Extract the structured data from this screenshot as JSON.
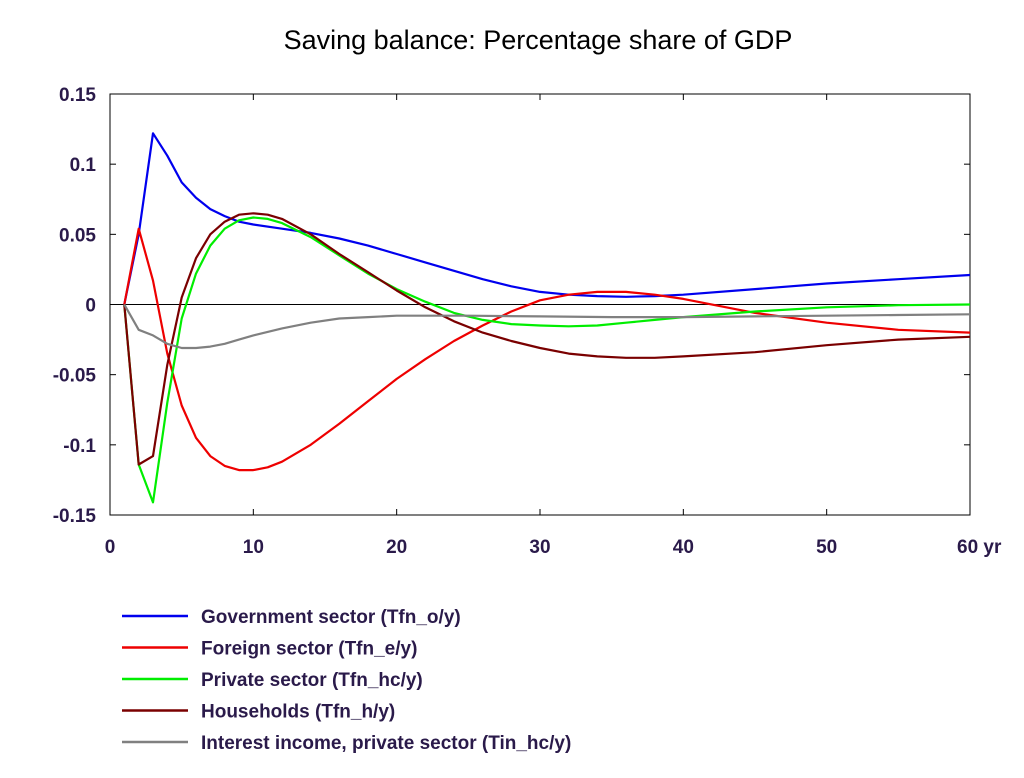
{
  "chart_data": {
    "type": "line",
    "title": "Saving balance: Percentage share of GDP",
    "xlabel": "",
    "ylabel": "",
    "xlim": [
      0,
      60
    ],
    "ylim": [
      -0.15,
      0.15
    ],
    "x_ticks": [
      0,
      10,
      20,
      30,
      40,
      50,
      60
    ],
    "x_tick_labels": [
      "0",
      "10",
      "20",
      "30",
      "40",
      "50",
      "60 yr"
    ],
    "y_ticks": [
      0.15,
      0.1,
      0.05,
      0,
      -0.05,
      -0.1,
      -0.15
    ],
    "y_tick_labels": [
      "0.15",
      "0.1",
      "0.05",
      "0",
      "-0.05",
      "-0.1",
      "-0.15"
    ],
    "zero_line": true,
    "grid": false,
    "legend_position": "bottom-left",
    "series": [
      {
        "name": "Government sector (Tfn_o/y)",
        "color": "#0000ee",
        "points": [
          [
            1,
            0
          ],
          [
            2,
            0.05
          ],
          [
            3,
            0.122
          ],
          [
            4,
            0.106
          ],
          [
            5,
            0.087
          ],
          [
            6,
            0.076
          ],
          [
            7,
            0.068
          ],
          [
            8,
            0.063
          ],
          [
            9,
            0.059
          ],
          [
            10,
            0.057
          ],
          [
            12,
            0.054
          ],
          [
            14,
            0.051
          ],
          [
            16,
            0.047
          ],
          [
            18,
            0.042
          ],
          [
            20,
            0.036
          ],
          [
            22,
            0.03
          ],
          [
            24,
            0.024
          ],
          [
            26,
            0.018
          ],
          [
            28,
            0.013
          ],
          [
            30,
            0.009
          ],
          [
            32,
            0.007
          ],
          [
            34,
            0.006
          ],
          [
            36,
            0.0055
          ],
          [
            38,
            0.006
          ],
          [
            40,
            0.007
          ],
          [
            45,
            0.011
          ],
          [
            50,
            0.015
          ],
          [
            55,
            0.018
          ],
          [
            60,
            0.021
          ]
        ]
      },
      {
        "name": "Foreign sector (Tfn_e/y)",
        "color": "#ee0000",
        "points": [
          [
            1,
            0
          ],
          [
            2,
            0.054
          ],
          [
            3,
            0.017
          ],
          [
            4,
            -0.035
          ],
          [
            5,
            -0.072
          ],
          [
            6,
            -0.095
          ],
          [
            7,
            -0.108
          ],
          [
            8,
            -0.115
          ],
          [
            9,
            -0.118
          ],
          [
            10,
            -0.118
          ],
          [
            11,
            -0.116
          ],
          [
            12,
            -0.112
          ],
          [
            14,
            -0.1
          ],
          [
            16,
            -0.085
          ],
          [
            18,
            -0.069
          ],
          [
            20,
            -0.053
          ],
          [
            22,
            -0.039
          ],
          [
            24,
            -0.026
          ],
          [
            26,
            -0.015
          ],
          [
            28,
            -0.005
          ],
          [
            30,
            0.003
          ],
          [
            32,
            0.007
          ],
          [
            34,
            0.009
          ],
          [
            36,
            0.009
          ],
          [
            38,
            0.007
          ],
          [
            40,
            0.004
          ],
          [
            45,
            -0.006
          ],
          [
            50,
            -0.013
          ],
          [
            55,
            -0.018
          ],
          [
            60,
            -0.02
          ]
        ]
      },
      {
        "name": "Private sector (Tfn_hc/y)",
        "color": "#00ee00",
        "points": [
          [
            1,
            0
          ],
          [
            2,
            -0.114
          ],
          [
            3,
            -0.141
          ],
          [
            4,
            -0.07
          ],
          [
            5,
            -0.01
          ],
          [
            6,
            0.022
          ],
          [
            7,
            0.042
          ],
          [
            8,
            0.054
          ],
          [
            9,
            0.06
          ],
          [
            10,
            0.062
          ],
          [
            11,
            0.061
          ],
          [
            12,
            0.058
          ],
          [
            14,
            0.048
          ],
          [
            16,
            0.035
          ],
          [
            18,
            0.022
          ],
          [
            20,
            0.011
          ],
          [
            22,
            0.002
          ],
          [
            24,
            -0.006
          ],
          [
            26,
            -0.011
          ],
          [
            28,
            -0.014
          ],
          [
            30,
            -0.015
          ],
          [
            32,
            -0.0155
          ],
          [
            34,
            -0.015
          ],
          [
            36,
            -0.013
          ],
          [
            38,
            -0.011
          ],
          [
            40,
            -0.009
          ],
          [
            45,
            -0.005
          ],
          [
            50,
            -0.002
          ],
          [
            55,
            -0.0005
          ],
          [
            60,
            0
          ]
        ]
      },
      {
        "name": "Households (Tfn_h/y)",
        "color": "#7a0000",
        "points": [
          [
            1,
            0
          ],
          [
            2,
            -0.114
          ],
          [
            3,
            -0.108
          ],
          [
            4,
            -0.043
          ],
          [
            5,
            0.005
          ],
          [
            6,
            0.033
          ],
          [
            7,
            0.05
          ],
          [
            8,
            0.059
          ],
          [
            9,
            0.064
          ],
          [
            10,
            0.065
          ],
          [
            11,
            0.064
          ],
          [
            12,
            0.061
          ],
          [
            14,
            0.05
          ],
          [
            16,
            0.036
          ],
          [
            18,
            0.023
          ],
          [
            20,
            0.01
          ],
          [
            22,
            -0.002
          ],
          [
            24,
            -0.012
          ],
          [
            26,
            -0.02
          ],
          [
            28,
            -0.026
          ],
          [
            30,
            -0.031
          ],
          [
            32,
            -0.035
          ],
          [
            34,
            -0.037
          ],
          [
            36,
            -0.038
          ],
          [
            38,
            -0.038
          ],
          [
            40,
            -0.037
          ],
          [
            45,
            -0.034
          ],
          [
            50,
            -0.029
          ],
          [
            55,
            -0.025
          ],
          [
            60,
            -0.023
          ]
        ]
      },
      {
        "name": "Interest income, private sector (Tin_hc/y)",
        "color": "#808080",
        "points": [
          [
            1,
            0
          ],
          [
            2,
            -0.018
          ],
          [
            3,
            -0.022
          ],
          [
            4,
            -0.028
          ],
          [
            5,
            -0.031
          ],
          [
            6,
            -0.031
          ],
          [
            7,
            -0.03
          ],
          [
            8,
            -0.028
          ],
          [
            9,
            -0.025
          ],
          [
            10,
            -0.022
          ],
          [
            12,
            -0.017
          ],
          [
            14,
            -0.013
          ],
          [
            16,
            -0.01
          ],
          [
            18,
            -0.009
          ],
          [
            20,
            -0.008
          ],
          [
            25,
            -0.008
          ],
          [
            30,
            -0.0085
          ],
          [
            35,
            -0.009
          ],
          [
            40,
            -0.009
          ],
          [
            45,
            -0.0085
          ],
          [
            50,
            -0.008
          ],
          [
            55,
            -0.0075
          ],
          [
            60,
            -0.007
          ]
        ]
      }
    ]
  }
}
